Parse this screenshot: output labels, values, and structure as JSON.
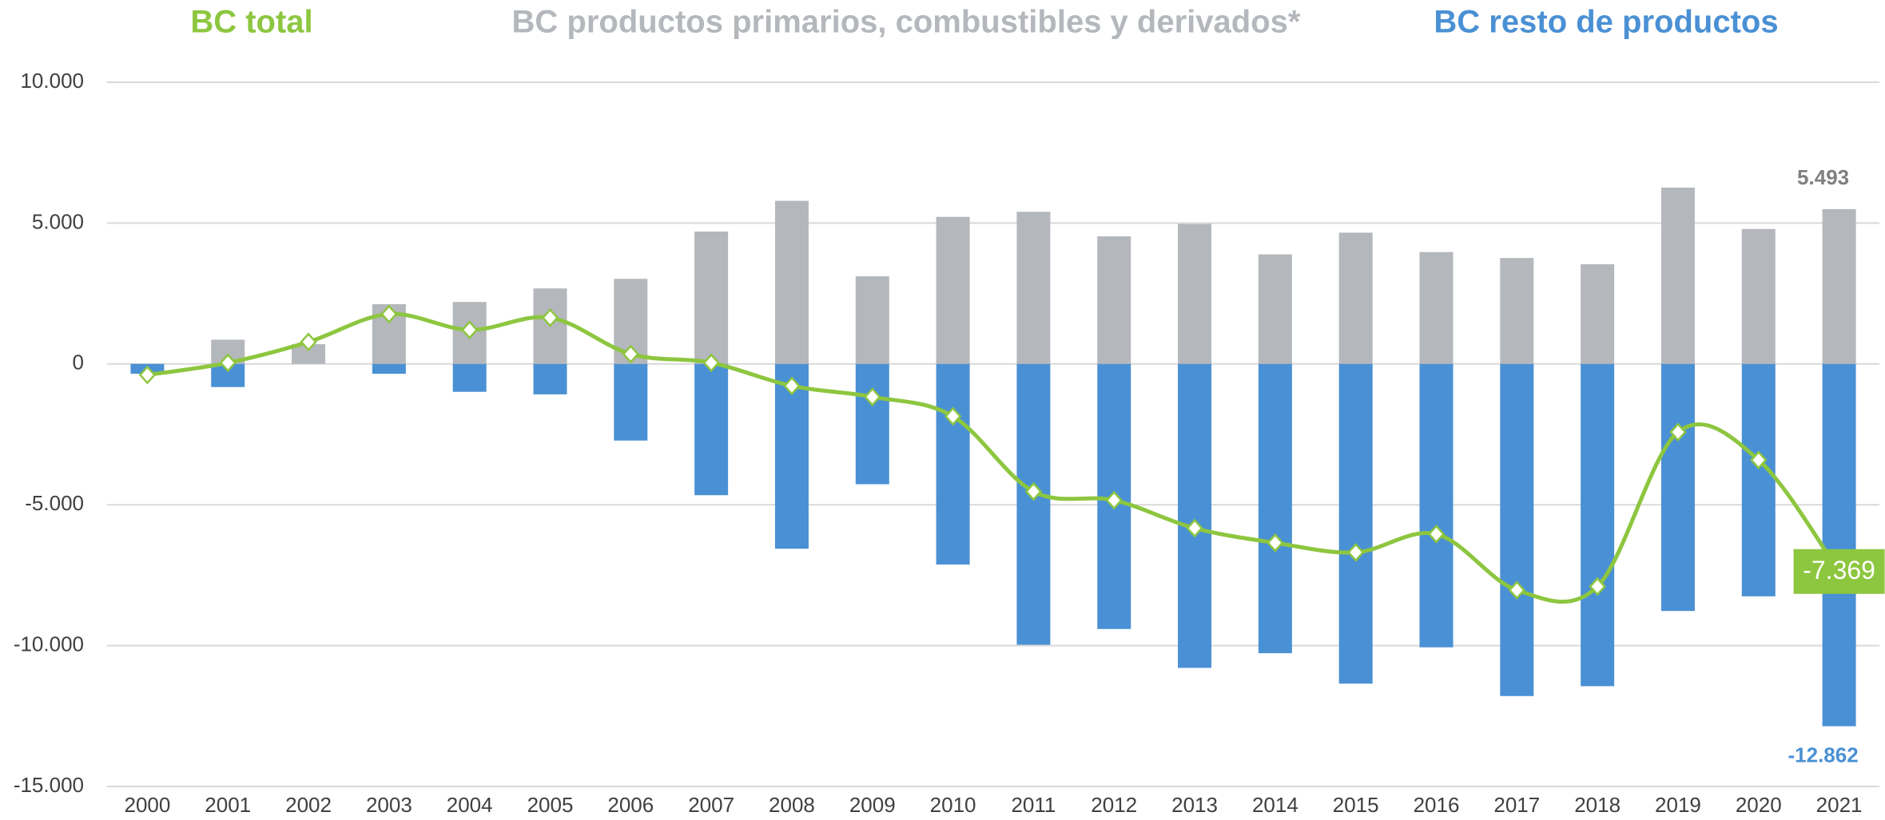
{
  "chart_data": {
    "type": "bar-line",
    "categories": [
      "2000",
      "2001",
      "2002",
      "2003",
      "2004",
      "2005",
      "2006",
      "2007",
      "2008",
      "2009",
      "2010",
      "2011",
      "2012",
      "2013",
      "2014",
      "2015",
      "2016",
      "2017",
      "2018",
      "2019",
      "2020",
      "2021"
    ],
    "series": [
      {
        "name": "BC total",
        "type": "line",
        "color": "#8dc63f",
        "values": [
          -390,
          40,
          780,
          1770,
          1210,
          1640,
          350,
          40,
          -780,
          -1170,
          -1860,
          -4530,
          -4840,
          -5830,
          -6350,
          -6690,
          -6040,
          -8030,
          -7900,
          -2420,
          -3410,
          -7369
        ],
        "value_labels": [
          null,
          null,
          null,
          null,
          null,
          null,
          null,
          null,
          null,
          null,
          null,
          null,
          null,
          null,
          null,
          null,
          null,
          null,
          null,
          null,
          null,
          "-7.369"
        ]
      },
      {
        "name": "BC productos primarios, combustibles y derivados*",
        "type": "bar",
        "color": "#b4b7bb",
        "values": [
          0,
          860,
          700,
          2120,
          2200,
          2680,
          3020,
          4700,
          5790,
          3110,
          5220,
          5400,
          4530,
          4970,
          3890,
          4660,
          3970,
          3760,
          3540,
          6260,
          4790,
          5493
        ],
        "value_labels": [
          null,
          null,
          null,
          null,
          null,
          null,
          null,
          null,
          null,
          null,
          null,
          null,
          null,
          null,
          null,
          null,
          null,
          null,
          null,
          null,
          null,
          "5.493"
        ]
      },
      {
        "name": "BC resto de productos",
        "type": "bar",
        "color": "#4a90d4",
        "values": [
          -350,
          -820,
          0,
          -350,
          -990,
          -1080,
          -2720,
          -4660,
          -6560,
          -4270,
          -7120,
          -9970,
          -9410,
          -10790,
          -10270,
          -11350,
          -10060,
          -11790,
          -11440,
          -8770,
          -8250,
          -12862
        ],
        "value_labels": [
          null,
          null,
          null,
          null,
          null,
          null,
          null,
          null,
          null,
          null,
          null,
          null,
          null,
          null,
          null,
          null,
          null,
          null,
          null,
          null,
          null,
          "-12.862"
        ]
      }
    ],
    "ylim": [
      -15000,
      10000
    ],
    "yticks": [
      {
        "value": -15000,
        "label": "-15.000"
      },
      {
        "value": -10000,
        "label": "-10.000"
      },
      {
        "value": -5000,
        "label": "-5.000"
      },
      0,
      {
        "value": 5000,
        "label": "5.000"
      },
      {
        "value": 10000,
        "label": "10.000"
      }
    ],
    "grid": true
  }
}
